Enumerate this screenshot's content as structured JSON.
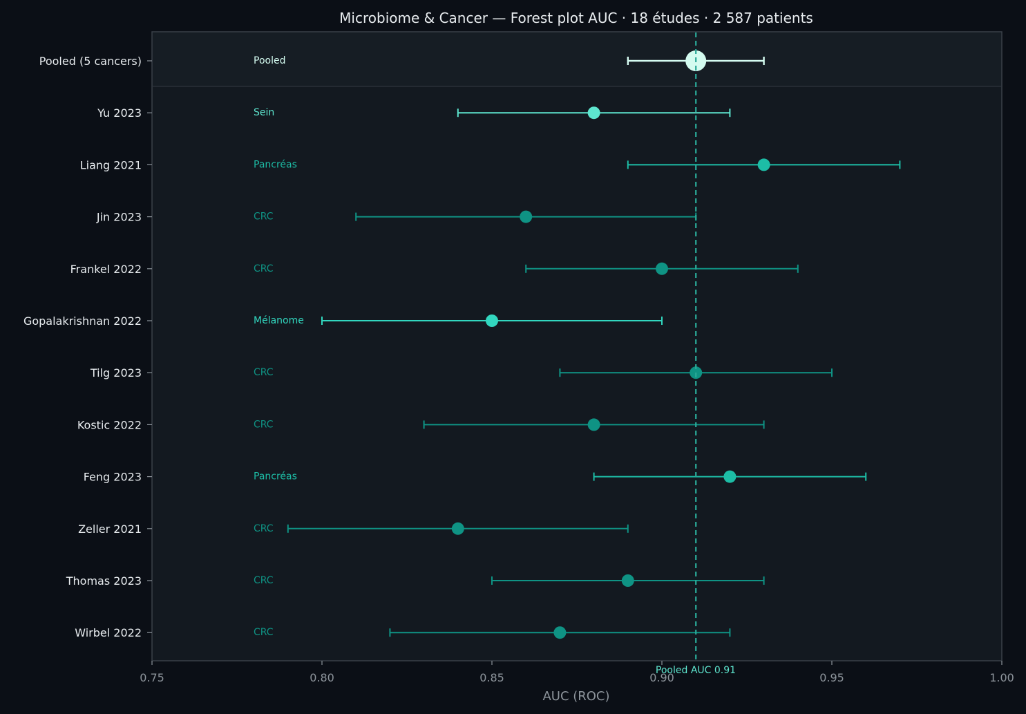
{
  "chart_data": {
    "type": "scatter",
    "title": "Microbiome & Cancer — Forest plot AUC · 18 études · 2 587 patients",
    "xlabel": "AUC (ROC)",
    "ylabel": "",
    "xlim": [
      0.75,
      1.0
    ],
    "xticks": [
      "0.75",
      "0.80",
      "0.85",
      "0.90",
      "0.95",
      "1.00"
    ],
    "grid": false,
    "reference_line": {
      "value": 0.91,
      "label": "Pooled AUC 0.91",
      "style": "dashed"
    },
    "studies": [
      {
        "study": "Pooled (5 cancers)",
        "cancer": "Pooled",
        "auc": 0.91,
        "ci_low": 0.89,
        "ci_high": 0.93,
        "pooled": true
      },
      {
        "study": "Yu 2023",
        "cancer": "Sein",
        "auc": 0.88,
        "ci_low": 0.84,
        "ci_high": 0.92
      },
      {
        "study": "Liang 2021",
        "cancer": "Pancréas",
        "auc": 0.93,
        "ci_low": 0.89,
        "ci_high": 0.97
      },
      {
        "study": "Jin 2023",
        "cancer": "CRC",
        "auc": 0.86,
        "ci_low": 0.81,
        "ci_high": 0.91
      },
      {
        "study": "Frankel 2022",
        "cancer": "CRC",
        "auc": 0.9,
        "ci_low": 0.86,
        "ci_high": 0.94
      },
      {
        "study": "Gopalakrishnan 2022",
        "cancer": "Mélanome",
        "auc": 0.85,
        "ci_low": 0.8,
        "ci_high": 0.9
      },
      {
        "study": "Tilg 2023",
        "cancer": "CRC",
        "auc": 0.91,
        "ci_low": 0.87,
        "ci_high": 0.95
      },
      {
        "study": "Kostic 2022",
        "cancer": "CRC",
        "auc": 0.88,
        "ci_low": 0.83,
        "ci_high": 0.93
      },
      {
        "study": "Feng 2023",
        "cancer": "Pancréas",
        "auc": 0.92,
        "ci_low": 0.88,
        "ci_high": 0.96
      },
      {
        "study": "Zeller 2021",
        "cancer": "CRC",
        "auc": 0.84,
        "ci_low": 0.79,
        "ci_high": 0.89
      },
      {
        "study": "Thomas 2023",
        "cancer": "CRC",
        "auc": 0.89,
        "ci_low": 0.85,
        "ci_high": 0.93
      },
      {
        "study": "Wirbel 2022",
        "cancer": "CRC",
        "auc": 0.87,
        "ci_low": 0.82,
        "ci_high": 0.92
      }
    ],
    "cancer_colors": {
      "Pooled": "#d4fbf0",
      "Sein": "#5ee6cf",
      "Pancréas": "#1dbda6",
      "CRC": "#0f9384",
      "Mélanome": "#32d7bf"
    },
    "colors": {
      "background": "#0b0f16",
      "plot_background": "#131920",
      "axis": "#3a4048",
      "reference_line": "#2aa897",
      "text": "#e8ecef",
      "muted_text": "#8d949b"
    }
  }
}
